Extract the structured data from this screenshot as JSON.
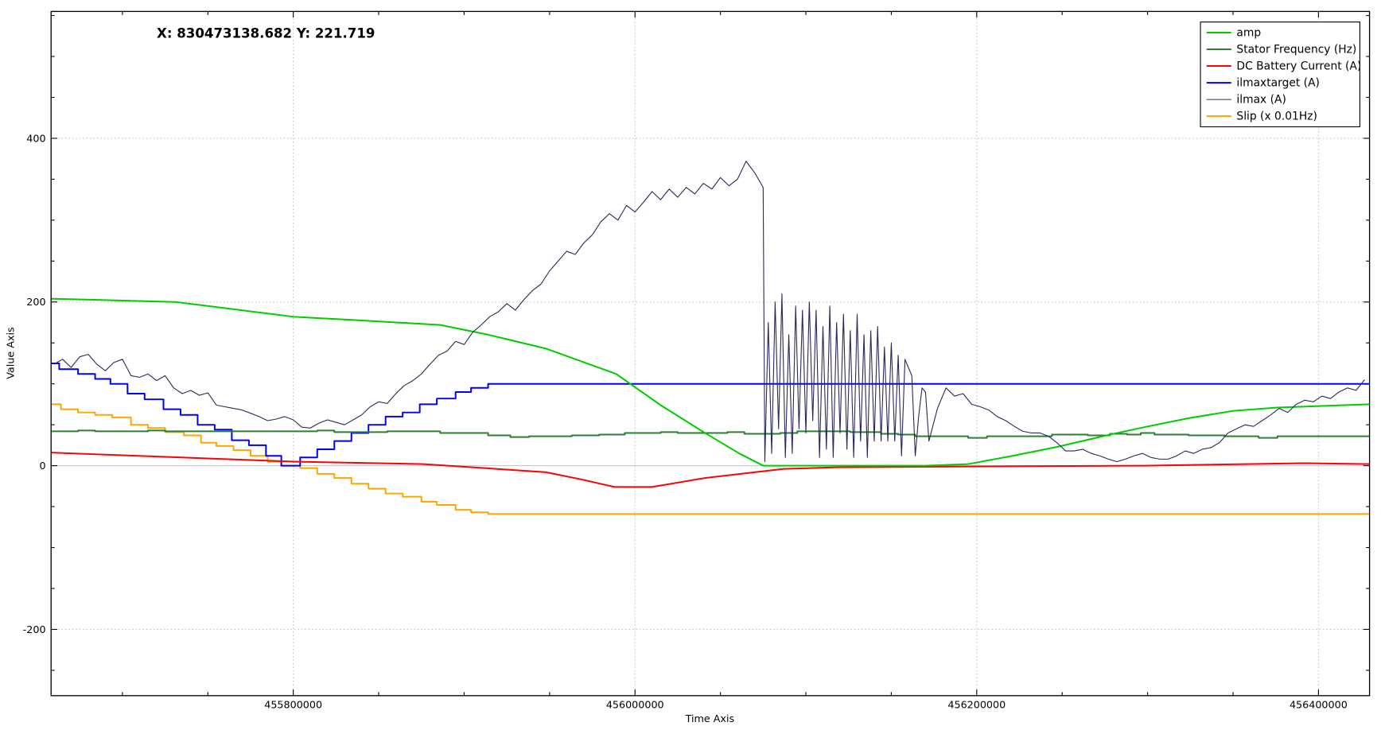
{
  "cursor_readout": "X: 830473138.682 Y: 221.719",
  "chart_data": {
    "type": "line",
    "title": "",
    "xlabel": "Time Axis",
    "ylabel": "Value Axis",
    "xlim": [
      455658250,
      456429900
    ],
    "ylim": [
      -281,
      555
    ],
    "x_base": 455800000,
    "x_offset_unit": 1000,
    "x_ticks": [
      455800000,
      456000000,
      456200000,
      456400000
    ],
    "x_tick_labels": [
      "455800000",
      "456000000",
      "456200000",
      "456400000"
    ],
    "x_minor_step": 50000,
    "y_ticks": [
      -200,
      200,
      400
    ],
    "y_tick_labels": [
      "-200",
      "200",
      "400"
    ],
    "y_zero_label": "0",
    "y_minor_step": 50,
    "grid": true,
    "legend_position": "top-right",
    "series": [
      {
        "name": "amp",
        "color": "#00cc00",
        "kind": "line",
        "x_offsets": [
          -142,
          -69,
          0,
          35,
          86,
          114,
          148,
          189,
          215,
          241,
          261,
          275,
          370,
          395,
          421,
          447,
          478,
          498,
          524,
          550,
          576,
          602,
          630
        ],
        "values": [
          204,
          200,
          182,
          178,
          172,
          160,
          143,
          112,
          74,
          40,
          15,
          0,
          0,
          2,
          12,
          23,
          38,
          47,
          58,
          67,
          71,
          73,
          75
        ]
      },
      {
        "name": "Stator Frequency (Hz)",
        "color": "#2e7d32",
        "kind": "step",
        "x_offsets": [
          -142,
          -126,
          -116,
          -85,
          -75,
          14,
          24,
          55,
          86,
          114,
          127,
          138,
          163,
          179,
          194,
          215,
          225,
          254,
          264,
          285,
          295,
          326,
          344,
          354,
          364,
          395,
          406,
          444,
          465,
          478,
          488,
          496,
          504,
          524,
          545,
          565,
          576,
          630
        ],
        "values": [
          42,
          43,
          42,
          43,
          42,
          43,
          41,
          42,
          40,
          37,
          35,
          36,
          37,
          38,
          40,
          41,
          40,
          41,
          39,
          40,
          42,
          41,
          39,
          38,
          36,
          34,
          36,
          38,
          37,
          39,
          38,
          40,
          38,
          37,
          36,
          34,
          36,
          36
        ]
      },
      {
        "name": "DC Battery Current (A)",
        "color": "#ff0000",
        "kind": "line",
        "x_offsets": [
          -142,
          0,
          76,
          112,
          148,
          169,
          188,
          210,
          241,
          287,
          318,
          395,
          498,
          591,
          630
        ],
        "values": [
          16,
          5,
          2,
          -3,
          -8,
          -17,
          -26,
          -26,
          -15,
          -4,
          -2,
          -1,
          0,
          3,
          2
        ]
      },
      {
        "name": "ilmaxtarget (A)",
        "color": "#0000ff",
        "kind": "step",
        "x_offsets": [
          -142,
          -137,
          -126,
          -116,
          -107,
          -97,
          -87,
          -76,
          -66,
          -56,
          -46,
          -36,
          -26,
          -16,
          -7,
          4,
          14,
          24,
          34,
          44,
          54,
          64,
          74,
          84,
          95,
          104,
          114,
          630
        ],
        "values": [
          125,
          118,
          112,
          106,
          100,
          88,
          81,
          69,
          62,
          50,
          44,
          31,
          25,
          12,
          0,
          10,
          20,
          30,
          40,
          50,
          60,
          65,
          75,
          82,
          90,
          95,
          100,
          100
        ]
      },
      {
        "name": "ilmax (A)",
        "color": "#2a2a5a",
        "kind": "sampled",
        "segments": [
          {
            "start_offset": -140,
            "step": 5,
            "values": [
              124,
              130,
              120,
              133,
              136,
              124,
              116,
              126,
              130,
              110,
              108,
              112,
              104,
              110,
              95,
              88,
              92,
              86,
              89,
              74,
              72,
              70,
              68,
              64,
              60,
              55,
              57,
              60,
              56,
              47,
              46,
              52,
              56,
              53,
              50,
              56,
              62,
              72,
              78,
              76,
              88,
              98,
              104,
              112,
              124,
              135,
              140,
              152,
              148,
              163,
              172,
              182,
              188,
              198,
              190,
              203,
              214,
              222,
              238,
              250,
              262,
              258,
              272,
              282,
              298,
              308,
              300,
              318,
              310,
              322,
              335,
              325,
              338,
              328,
              340,
              332,
              345,
              338,
              352,
              342,
              350,
              372,
              358,
              340
            ]
          },
          {
            "start_offset": 276,
            "step": 2,
            "values": [
              5,
              175,
              15,
              200,
              45,
              210,
              10,
              160,
              15,
              195,
              45,
              190,
              40,
              200,
              55,
              190,
              10,
              170,
              20,
              195,
              10,
              175,
              40,
              185,
              20,
              165,
              10,
              185,
              30,
              160,
              10,
              165,
              30,
              170,
              30,
              145,
              30,
              150,
              30,
              135,
              12,
              130,
              120,
              110,
              12,
              60,
              95,
              90
            ]
          },
          {
            "start_offset": 372,
            "step": 5,
            "values": [
              30,
              70,
              95,
              85,
              88,
              75,
              72,
              68,
              60,
              55,
              48,
              42,
              40,
              40,
              36,
              28,
              18,
              18,
              20,
              15,
              12,
              8,
              5,
              8,
              12,
              15,
              10,
              8,
              8,
              12,
              18,
              15,
              20,
              22,
              28,
              40,
              45,
              50,
              48,
              55,
              62,
              70,
              65,
              75,
              80,
              78,
              85,
              82,
              90,
              95,
              92,
              105
            ]
          }
        ]
      },
      {
        "name": "Slip (x 0.01Hz)",
        "color": "#ffa500",
        "kind": "step",
        "x_offsets": [
          -142,
          -136,
          -126,
          -116,
          -106,
          -95,
          -85,
          -75,
          -64,
          -54,
          -45,
          -35,
          -25,
          -15,
          -7,
          4,
          14,
          24,
          34,
          44,
          54,
          64,
          75,
          84,
          95,
          104,
          114,
          630
        ],
        "values": [
          75,
          69,
          65,
          62,
          59,
          50,
          46,
          41,
          37,
          28,
          24,
          19,
          12,
          5,
          0,
          -3,
          -10,
          -15,
          -22,
          -28,
          -34,
          -38,
          -44,
          -48,
          -54,
          -57,
          -59,
          -59
        ]
      }
    ]
  }
}
